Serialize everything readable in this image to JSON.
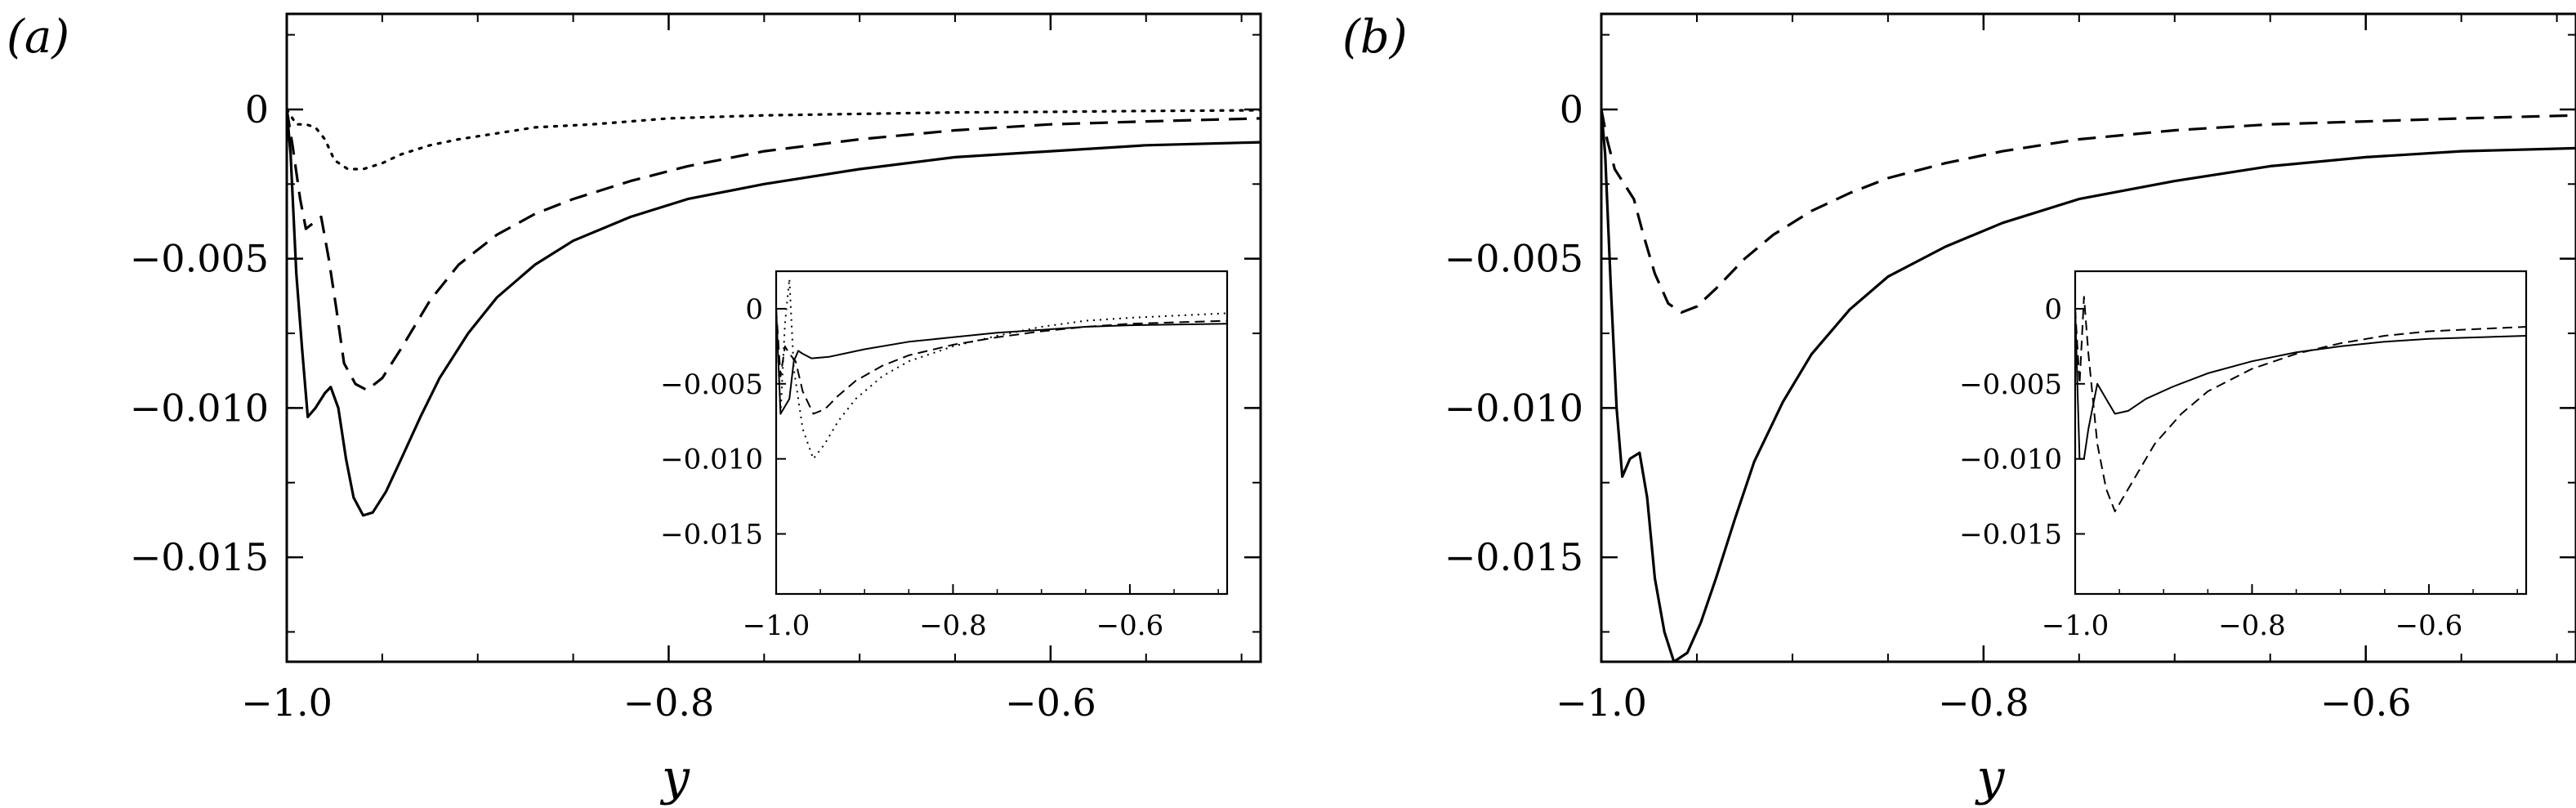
{
  "chart_data": [
    {
      "type": "line",
      "panel_label": "(a)",
      "panel_letter": "a",
      "xlabel": "y",
      "ylabel": "",
      "xlim": [
        -1.0,
        -0.49
      ],
      "ylim": [
        -0.0185,
        0.0032
      ],
      "x_ticks": [
        "−1.0",
        "−0.8",
        "−0.6"
      ],
      "y_ticks": [
        "0",
        "−0.005",
        "−0.010",
        "−0.015"
      ],
      "series": [
        {
          "name": "solid",
          "style": "solid",
          "points": [
            [
              -1.0,
              0
            ],
            [
              -0.998,
              -0.0015
            ],
            [
              -0.995,
              -0.0055
            ],
            [
              -0.992,
              -0.008
            ],
            [
              -0.989,
              -0.0103
            ],
            [
              -0.985,
              -0.01
            ],
            [
              -0.98,
              -0.0095
            ],
            [
              -0.977,
              -0.0093
            ],
            [
              -0.973,
              -0.01
            ],
            [
              -0.969,
              -0.0117
            ],
            [
              -0.965,
              -0.013
            ],
            [
              -0.96,
              -0.0136
            ],
            [
              -0.955,
              -0.0135
            ],
            [
              -0.948,
              -0.0128
            ],
            [
              -0.94,
              -0.0117
            ],
            [
              -0.93,
              -0.0103
            ],
            [
              -0.92,
              -0.009
            ],
            [
              -0.905,
              -0.0075
            ],
            [
              -0.89,
              -0.0063
            ],
            [
              -0.87,
              -0.0052
            ],
            [
              -0.85,
              -0.0044
            ],
            [
              -0.82,
              -0.0036
            ],
            [
              -0.79,
              -0.003
            ],
            [
              -0.75,
              -0.0025
            ],
            [
              -0.7,
              -0.002
            ],
            [
              -0.65,
              -0.0016
            ],
            [
              -0.6,
              -0.0014
            ],
            [
              -0.55,
              -0.0012
            ],
            [
              -0.49,
              -0.0011
            ]
          ]
        },
        {
          "name": "dashed",
          "style": "dashed",
          "points": [
            [
              -1.0,
              0
            ],
            [
              -0.997,
              -0.0012
            ],
            [
              -0.993,
              -0.003
            ],
            [
              -0.99,
              -0.004
            ],
            [
              -0.986,
              -0.0038
            ],
            [
              -0.982,
              -0.0036
            ],
            [
              -0.978,
              -0.005
            ],
            [
              -0.974,
              -0.0067
            ],
            [
              -0.97,
              -0.0085
            ],
            [
              -0.964,
              -0.0092
            ],
            [
              -0.958,
              -0.0094
            ],
            [
              -0.95,
              -0.009
            ],
            [
              -0.94,
              -0.008
            ],
            [
              -0.925,
              -0.0064
            ],
            [
              -0.91,
              -0.0052
            ],
            [
              -0.89,
              -0.0042
            ],
            [
              -0.87,
              -0.0035
            ],
            [
              -0.85,
              -0.003
            ],
            [
              -0.82,
              -0.0024
            ],
            [
              -0.79,
              -0.0019
            ],
            [
              -0.75,
              -0.0014
            ],
            [
              -0.7,
              -0.001
            ],
            [
              -0.65,
              -0.0007
            ],
            [
              -0.6,
              -0.0005
            ],
            [
              -0.55,
              -0.0004
            ],
            [
              -0.49,
              -0.0003
            ]
          ]
        },
        {
          "name": "dotted",
          "style": "dotted",
          "points": [
            [
              -1.0,
              0
            ],
            [
              -0.995,
              -0.0005
            ],
            [
              -0.99,
              -0.0005
            ],
            [
              -0.985,
              -0.0006
            ],
            [
              -0.98,
              -0.001
            ],
            [
              -0.975,
              -0.0017
            ],
            [
              -0.968,
              -0.002
            ],
            [
              -0.96,
              -0.002
            ],
            [
              -0.95,
              -0.0018
            ],
            [
              -0.94,
              -0.0015
            ],
            [
              -0.925,
              -0.0012
            ],
            [
              -0.91,
              -0.001
            ],
            [
              -0.89,
              -0.0008
            ],
            [
              -0.87,
              -0.0006
            ],
            [
              -0.84,
              -0.0005
            ],
            [
              -0.8,
              -0.0003
            ],
            [
              -0.75,
              -0.0002
            ],
            [
              -0.7,
              -0.00015
            ],
            [
              -0.65,
              -0.0001
            ],
            [
              -0.6,
              -8e-05
            ],
            [
              -0.55,
              -5e-05
            ],
            [
              -0.49,
              -3e-05
            ]
          ]
        }
      ],
      "inset": {
        "xlim": [
          -1.0,
          -0.49
        ],
        "ylim": [
          -0.019,
          0.0025
        ],
        "x_ticks": [
          "−1.0",
          "−0.8",
          "−0.6"
        ],
        "y_ticks": [
          "0",
          "−0.005",
          "−0.010",
          "−0.015"
        ],
        "series": [
          {
            "name": "solid",
            "style": "solid",
            "points": [
              [
                -1.0,
                0
              ],
              [
                -0.995,
                -0.007
              ],
              [
                -0.985,
                -0.006
              ],
              [
                -0.98,
                -0.0035
              ],
              [
                -0.975,
                -0.0028
              ],
              [
                -0.97,
                -0.003
              ],
              [
                -0.96,
                -0.0033
              ],
              [
                -0.94,
                -0.0032
              ],
              [
                -0.9,
                -0.0027
              ],
              [
                -0.85,
                -0.0022
              ],
              [
                -0.8,
                -0.0019
              ],
              [
                -0.75,
                -0.0016
              ],
              [
                -0.7,
                -0.0014
              ],
              [
                -0.65,
                -0.0012
              ],
              [
                -0.6,
                -0.0011
              ],
              [
                -0.49,
                -0.001
              ]
            ]
          },
          {
            "name": "dashed",
            "style": "dashed",
            "points": [
              [
                -1.0,
                0
              ],
              [
                -0.995,
                -0.0045
              ],
              [
                -0.99,
                -0.0025
              ],
              [
                -0.985,
                -0.003
              ],
              [
                -0.978,
                -0.0035
              ],
              [
                -0.97,
                -0.0055
              ],
              [
                -0.958,
                -0.007
              ],
              [
                -0.945,
                -0.0067
              ],
              [
                -0.93,
                -0.0058
              ],
              [
                -0.91,
                -0.0048
              ],
              [
                -0.88,
                -0.0038
              ],
              [
                -0.85,
                -0.0031
              ],
              [
                -0.8,
                -0.0024
              ],
              [
                -0.75,
                -0.0019
              ],
              [
                -0.7,
                -0.0015
              ],
              [
                -0.65,
                -0.0012
              ],
              [
                -0.6,
                -0.001
              ],
              [
                -0.49,
                -0.0008
              ]
            ]
          },
          {
            "name": "dotted",
            "style": "dotted",
            "points": [
              [
                -1.0,
                0
              ],
              [
                -0.995,
                -0.007
              ],
              [
                -0.99,
                -0.001
              ],
              [
                -0.985,
                0.002
              ],
              [
                -0.98,
                -0.004
              ],
              [
                -0.97,
                -0.008
              ],
              [
                -0.958,
                -0.01
              ],
              [
                -0.945,
                -0.009
              ],
              [
                -0.93,
                -0.0075
              ],
              [
                -0.91,
                -0.006
              ],
              [
                -0.88,
                -0.0045
              ],
              [
                -0.85,
                -0.0035
              ],
              [
                -0.8,
                -0.0025
              ],
              [
                -0.75,
                -0.0018
              ],
              [
                -0.7,
                -0.0012
              ],
              [
                -0.65,
                -0.0008
              ],
              [
                -0.6,
                -0.0006
              ],
              [
                -0.49,
                -0.0003
              ]
            ]
          }
        ]
      }
    },
    {
      "type": "line",
      "panel_label": "(b)",
      "panel_letter": "b",
      "xlabel": "y",
      "ylabel": "",
      "xlim": [
        -1.0,
        -0.49
      ],
      "ylim": [
        -0.0185,
        0.0032
      ],
      "x_ticks": [
        "−1.0",
        "−0.8",
        "−0.6"
      ],
      "y_ticks": [
        "0",
        "−0.005",
        "−0.010",
        "−0.015"
      ],
      "series": [
        {
          "name": "solid",
          "style": "solid",
          "points": [
            [
              -1.0,
              0
            ],
            [
              -0.998,
              -0.0015
            ],
            [
              -0.995,
              -0.006
            ],
            [
              -0.992,
              -0.01
            ],
            [
              -0.989,
              -0.0123
            ],
            [
              -0.985,
              -0.0117
            ],
            [
              -0.98,
              -0.0115
            ],
            [
              -0.976,
              -0.013
            ],
            [
              -0.972,
              -0.0157
            ],
            [
              -0.967,
              -0.0175
            ],
            [
              -0.962,
              -0.0185
            ],
            [
              -0.955,
              -0.0182
            ],
            [
              -0.948,
              -0.0172
            ],
            [
              -0.94,
              -0.0157
            ],
            [
              -0.93,
              -0.0137
            ],
            [
              -0.92,
              -0.0118
            ],
            [
              -0.905,
              -0.0098
            ],
            [
              -0.89,
              -0.0082
            ],
            [
              -0.87,
              -0.0067
            ],
            [
              -0.85,
              -0.0056
            ],
            [
              -0.82,
              -0.0046
            ],
            [
              -0.79,
              -0.0038
            ],
            [
              -0.75,
              -0.003
            ],
            [
              -0.7,
              -0.0024
            ],
            [
              -0.65,
              -0.0019
            ],
            [
              -0.6,
              -0.0016
            ],
            [
              -0.55,
              -0.0014
            ],
            [
              -0.49,
              -0.0013
            ]
          ]
        },
        {
          "name": "dashed",
          "style": "dashed",
          "points": [
            [
              -1.0,
              0
            ],
            [
              -0.997,
              -0.001
            ],
            [
              -0.993,
              -0.002
            ],
            [
              -0.988,
              -0.0025
            ],
            [
              -0.983,
              -0.003
            ],
            [
              -0.978,
              -0.0042
            ],
            [
              -0.972,
              -0.0055
            ],
            [
              -0.965,
              -0.0065
            ],
            [
              -0.958,
              -0.0068
            ],
            [
              -0.95,
              -0.0066
            ],
            [
              -0.94,
              -0.006
            ],
            [
              -0.925,
              -0.005
            ],
            [
              -0.91,
              -0.0042
            ],
            [
              -0.89,
              -0.0034
            ],
            [
              -0.87,
              -0.0028
            ],
            [
              -0.85,
              -0.0023
            ],
            [
              -0.82,
              -0.0018
            ],
            [
              -0.79,
              -0.0014
            ],
            [
              -0.75,
              -0.001
            ],
            [
              -0.7,
              -0.0007
            ],
            [
              -0.65,
              -0.0005
            ],
            [
              -0.6,
              -0.0004
            ],
            [
              -0.55,
              -0.0003
            ],
            [
              -0.49,
              -0.0002
            ]
          ]
        }
      ],
      "inset": {
        "xlim": [
          -1.0,
          -0.49
        ],
        "ylim": [
          -0.019,
          0.0025
        ],
        "x_ticks": [
          "−1.0",
          "−0.8",
          "−0.6"
        ],
        "y_ticks": [
          "0",
          "−0.005",
          "−0.010",
          "−0.015"
        ],
        "series": [
          {
            "name": "solid",
            "style": "solid",
            "points": [
              [
                -1.0,
                0
              ],
              [
                -0.995,
                -0.01
              ],
              [
                -0.99,
                -0.01
              ],
              [
                -0.985,
                -0.008
              ],
              [
                -0.975,
                -0.005
              ],
              [
                -0.965,
                -0.006
              ],
              [
                -0.955,
                -0.007
              ],
              [
                -0.94,
                -0.0068
              ],
              [
                -0.92,
                -0.006
              ],
              [
                -0.89,
                -0.0052
              ],
              [
                -0.85,
                -0.0043
              ],
              [
                -0.8,
                -0.0035
              ],
              [
                -0.75,
                -0.0029
              ],
              [
                -0.7,
                -0.0025
              ],
              [
                -0.65,
                -0.0022
              ],
              [
                -0.6,
                -0.002
              ],
              [
                -0.49,
                -0.0018
              ]
            ]
          },
          {
            "name": "dashed",
            "style": "dashed",
            "points": [
              [
                -1.0,
                0
              ],
              [
                -0.995,
                -0.005
              ],
              [
                -0.99,
                0.0008
              ],
              [
                -0.985,
                -0.003
              ],
              [
                -0.975,
                -0.009
              ],
              [
                -0.965,
                -0.012
              ],
              [
                -0.955,
                -0.0135
              ],
              [
                -0.945,
                -0.0125
              ],
              [
                -0.93,
                -0.011
              ],
              [
                -0.91,
                -0.009
              ],
              [
                -0.88,
                -0.007
              ],
              [
                -0.85,
                -0.0055
              ],
              [
                -0.8,
                -0.004
              ],
              [
                -0.75,
                -0.003
              ],
              [
                -0.7,
                -0.0023
              ],
              [
                -0.65,
                -0.0018
              ],
              [
                -0.6,
                -0.0015
              ],
              [
                -0.49,
                -0.0012
              ]
            ]
          }
        ]
      }
    }
  ]
}
